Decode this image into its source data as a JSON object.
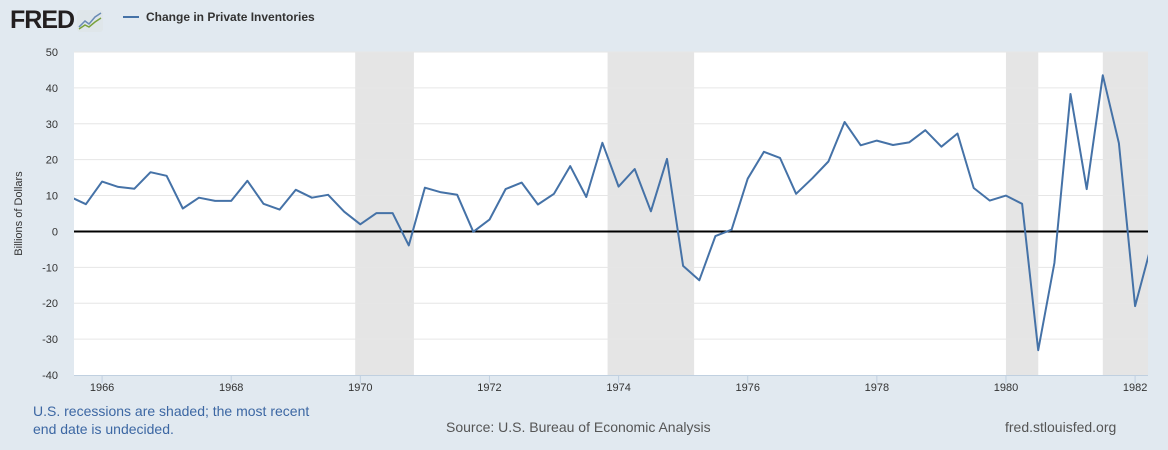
{
  "header": {
    "logo": "FRED",
    "logo_icon": "chart-line-icon",
    "legend_label": "Change in Private Inventories"
  },
  "footer": {
    "recession_note": "U.S. recessions are shaded; the most recent end date is undecided.",
    "source": "Source: U.S. Bureau of Economic Analysis",
    "site": "fred.stlouisfed.org"
  },
  "colors": {
    "line": "#4572a7",
    "recession": "#e5e5e5",
    "background": "#e1e9f0"
  },
  "chart_data": {
    "type": "line",
    "title": "Change in Private Inventories",
    "xlabel": "",
    "ylabel": "Billions of Dollars",
    "xlim": [
      1965.565,
      1982.2
    ],
    "ylim": [
      -40,
      50
    ],
    "yticks": [
      50,
      40,
      30,
      20,
      10,
      0,
      -10,
      -20,
      -30,
      -40
    ],
    "xticks": [
      1966,
      1968,
      1970,
      1972,
      1974,
      1976,
      1978,
      1980,
      1982
    ],
    "grid": true,
    "legend_position": "top-left",
    "series": [
      {
        "name": "Change in Private Inventories",
        "start": 1965.5,
        "step": 0.25,
        "values": [
          9.7,
          7.6,
          13.9,
          12.4,
          11.9,
          16.5,
          15.5,
          6.4,
          9.4,
          8.5,
          8.5,
          14.1,
          7.7,
          6.1,
          11.6,
          9.4,
          10.2,
          5.5,
          2.0,
          5.1,
          5.1,
          -3.9,
          12.2,
          10.9,
          10.2,
          -0.1,
          3.3,
          11.8,
          13.6,
          7.5,
          10.5,
          18.2,
          9.6,
          24.7,
          12.5,
          17.4,
          5.6,
          20.2,
          -9.6,
          -13.6,
          -1.3,
          0.5,
          14.7,
          22.2,
          20.5,
          10.5,
          14.8,
          19.5,
          30.5,
          24.0,
          25.3,
          24.1,
          24.8,
          28.2,
          23.6,
          27.3,
          12.1,
          8.6,
          10.0,
          7.7,
          -33.1,
          -8.8,
          38.3,
          11.8,
          43.5,
          24.6,
          -20.8,
          -4.0
        ]
      }
    ],
    "recessions": [
      [
        1969.92,
        1970.83
      ],
      [
        1973.83,
        1975.17
      ],
      [
        1980.0,
        1980.5
      ],
      [
        1981.5,
        1982.2
      ]
    ]
  }
}
